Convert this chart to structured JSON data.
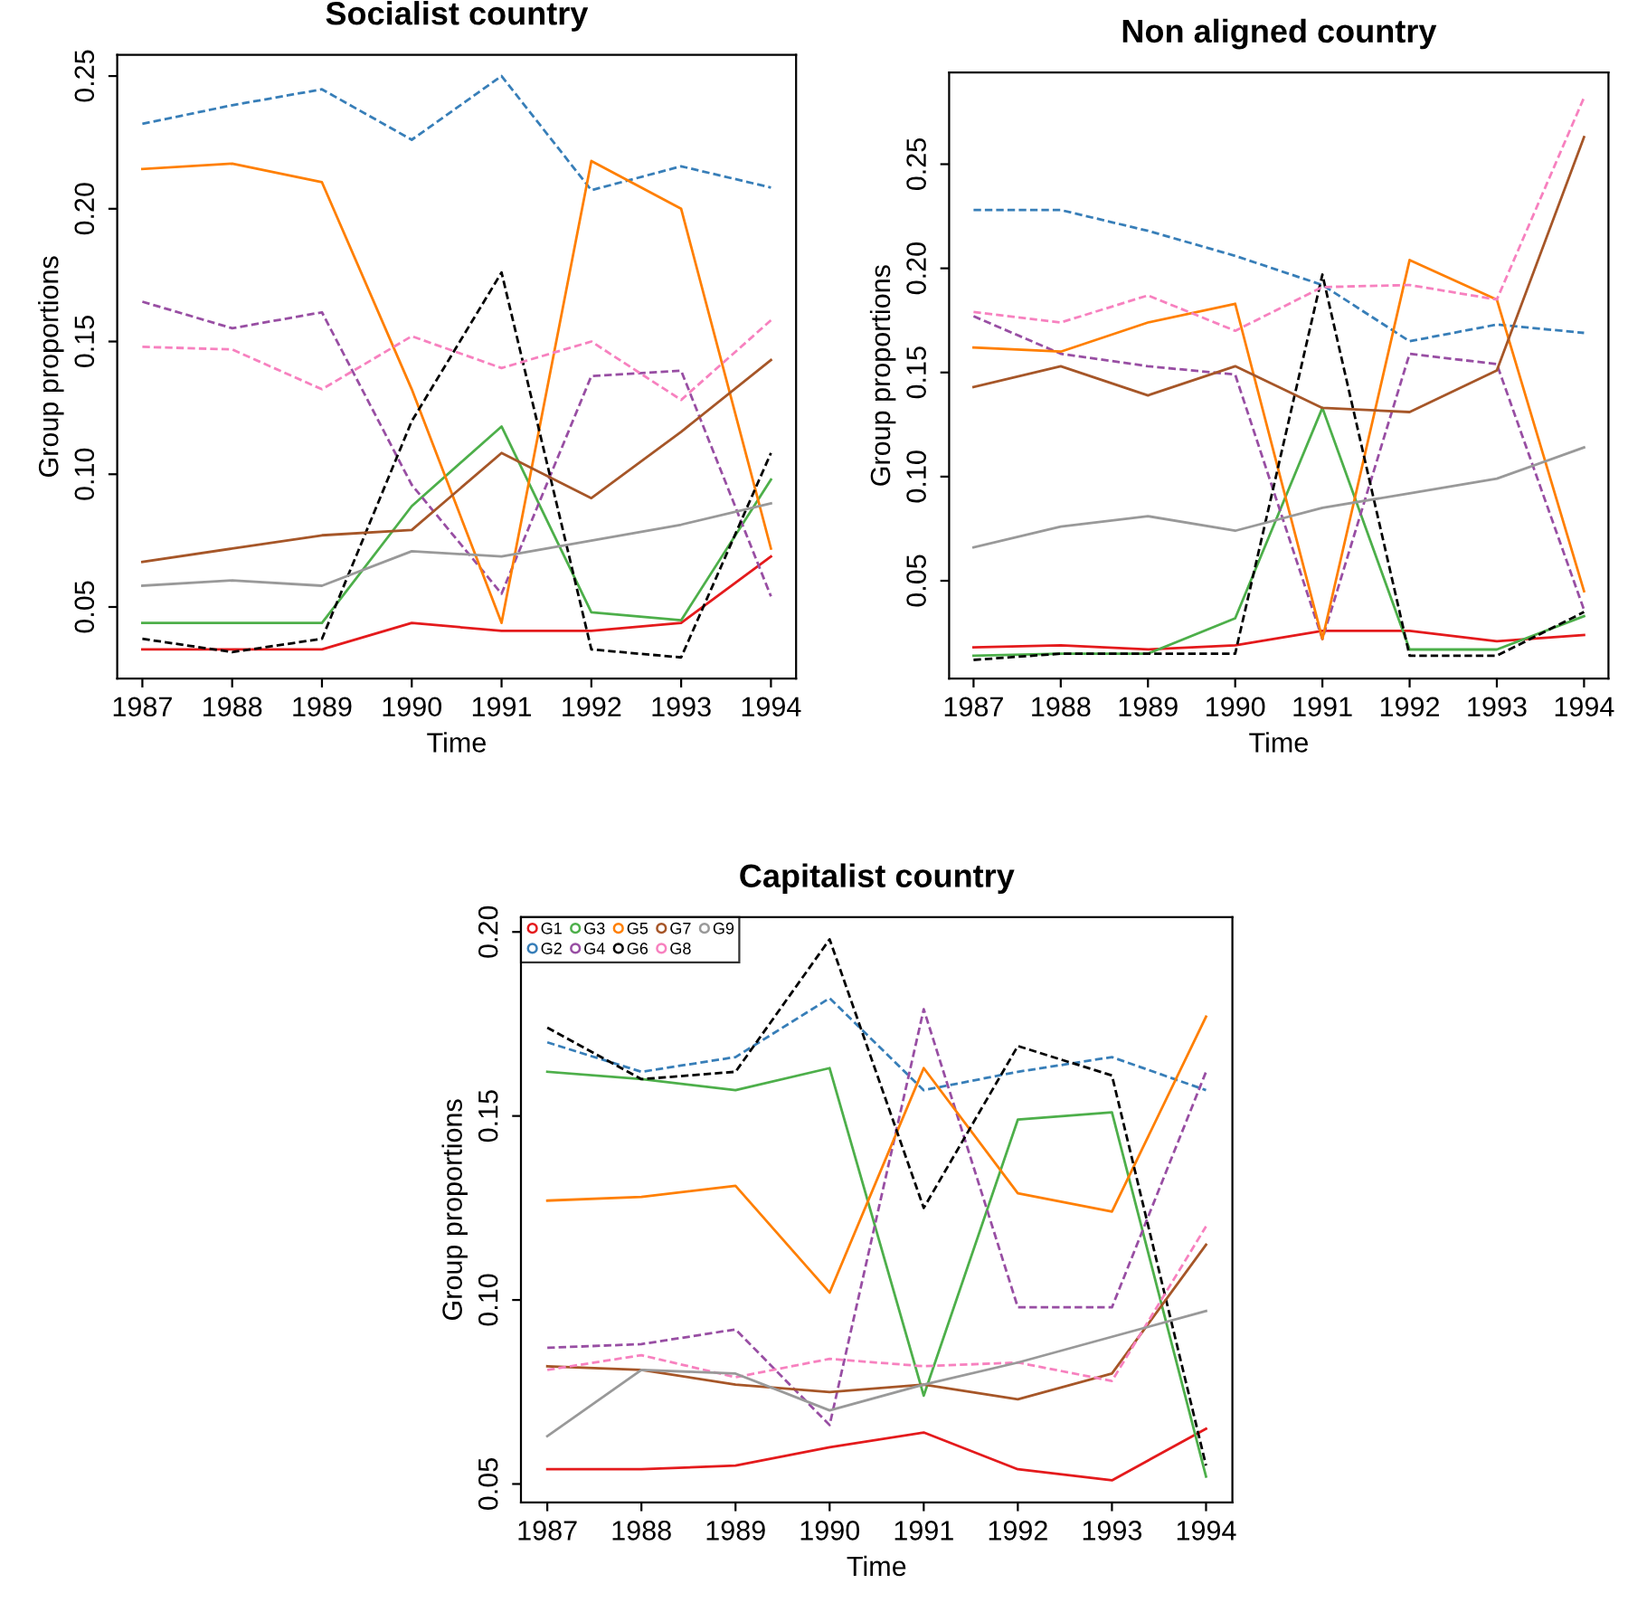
{
  "chart_data": [
    {
      "type": "line",
      "title": "Socialist country",
      "xlabel": "Time",
      "ylabel": "Group proportions",
      "x": [
        1987,
        1988,
        1989,
        1990,
        1991,
        1992,
        1993,
        1994
      ],
      "xlim": [
        1986.72,
        1994.28
      ],
      "xticks": [
        1987,
        1988,
        1989,
        1990,
        1991,
        1992,
        1993,
        1994
      ],
      "ylim": [
        0.023,
        0.258
      ],
      "yticks": [
        {
          "value": 0.05,
          "label": "0.05"
        },
        {
          "value": 0.1,
          "label": "0.10"
        },
        {
          "value": 0.15,
          "label": "0.15"
        },
        {
          "value": 0.2,
          "label": "0.20"
        },
        {
          "value": 0.25,
          "label": "0.25"
        }
      ],
      "grid": false,
      "legend": false,
      "series": [
        {
          "color": "#e41a1c",
          "line_style": "solid",
          "values": [
            0.034,
            0.034,
            0.034,
            0.044,
            0.041,
            0.041,
            0.044,
            0.069
          ]
        },
        {
          "color": "#377eb8",
          "line_style": "dashed",
          "values": [
            0.232,
            0.239,
            0.245,
            0.226,
            0.25,
            0.207,
            0.216,
            0.208
          ]
        },
        {
          "color": "#4daf4a",
          "line_style": "solid",
          "values": [
            0.044,
            0.044,
            0.044,
            0.088,
            0.118,
            0.048,
            0.045,
            0.098
          ]
        },
        {
          "color": "#984ea3",
          "line_style": "dashed",
          "values": [
            0.165,
            0.155,
            0.161,
            0.096,
            0.055,
            0.137,
            0.139,
            0.054
          ]
        },
        {
          "color": "#ff7f00",
          "line_style": "solid",
          "values": [
            0.215,
            0.217,
            0.21,
            0.132,
            0.044,
            0.218,
            0.2,
            0.072
          ]
        },
        {
          "color": "#000000",
          "line_style": "dashed",
          "values": [
            0.038,
            0.033,
            0.038,
            0.12,
            0.176,
            0.034,
            0.031,
            0.108
          ]
        },
        {
          "color": "#a65628",
          "line_style": "solid",
          "values": [
            0.067,
            0.072,
            0.077,
            0.079,
            0.108,
            0.091,
            0.116,
            0.143
          ]
        },
        {
          "color": "#f781bf",
          "line_style": "dashed",
          "values": [
            0.148,
            0.147,
            0.132,
            0.152,
            0.14,
            0.15,
            0.128,
            0.158
          ]
        },
        {
          "color": "#999999",
          "line_style": "solid",
          "values": [
            0.058,
            0.06,
            0.058,
            0.071,
            0.069,
            0.075,
            0.081,
            0.089
          ]
        }
      ]
    },
    {
      "type": "line",
      "title": "Non aligned country",
      "xlabel": "Time",
      "ylabel": "Group proportions",
      "x": [
        1987,
        1988,
        1989,
        1990,
        1991,
        1992,
        1993,
        1994
      ],
      "xlim": [
        1986.72,
        1994.28
      ],
      "xticks": [
        1987,
        1988,
        1989,
        1990,
        1991,
        1992,
        1993,
        1994
      ],
      "ylim": [
        0.003,
        0.294
      ],
      "yticks": [
        {
          "value": 0.05,
          "label": "0.05"
        },
        {
          "value": 0.1,
          "label": "0.10"
        },
        {
          "value": 0.15,
          "label": "0.15"
        },
        {
          "value": 0.2,
          "label": "0.20"
        },
        {
          "value": 0.25,
          "label": "0.25"
        }
      ],
      "grid": false,
      "legend": false,
      "series": [
        {
          "color": "#e41a1c",
          "line_style": "solid",
          "values": [
            0.018,
            0.019,
            0.017,
            0.019,
            0.026,
            0.026,
            0.021,
            0.024
          ]
        },
        {
          "color": "#377eb8",
          "line_style": "dashed",
          "values": [
            0.228,
            0.228,
            0.218,
            0.206,
            0.192,
            0.165,
            0.173,
            0.169
          ]
        },
        {
          "color": "#4daf4a",
          "line_style": "solid",
          "values": [
            0.014,
            0.015,
            0.015,
            0.032,
            0.133,
            0.017,
            0.017,
            0.033
          ]
        },
        {
          "color": "#984ea3",
          "line_style": "dashed",
          "values": [
            0.177,
            0.159,
            0.153,
            0.149,
            0.022,
            0.159,
            0.154,
            0.036
          ]
        },
        {
          "color": "#ff7f00",
          "line_style": "solid",
          "values": [
            0.162,
            0.16,
            0.174,
            0.183,
            0.022,
            0.204,
            0.185,
            0.045
          ]
        },
        {
          "color": "#000000",
          "line_style": "dashed",
          "values": [
            0.012,
            0.015,
            0.015,
            0.015,
            0.197,
            0.014,
            0.014,
            0.035
          ]
        },
        {
          "color": "#a65628",
          "line_style": "solid",
          "values": [
            0.143,
            0.153,
            0.139,
            0.153,
            0.133,
            0.131,
            0.151,
            0.263
          ]
        },
        {
          "color": "#f781bf",
          "line_style": "dashed",
          "values": [
            0.179,
            0.174,
            0.187,
            0.17,
            0.191,
            0.192,
            0.185,
            0.282
          ]
        },
        {
          "color": "#999999",
          "line_style": "solid",
          "values": [
            0.066,
            0.076,
            0.081,
            0.074,
            0.085,
            0.092,
            0.099,
            0.114
          ]
        }
      ]
    },
    {
      "type": "line",
      "title": "Capitalist country",
      "xlabel": "Time",
      "ylabel": "Group proportions",
      "x": [
        1987,
        1988,
        1989,
        1990,
        1991,
        1992,
        1993,
        1994
      ],
      "xlim": [
        1986.72,
        1994.28
      ],
      "xticks": [
        1987,
        1988,
        1989,
        1990,
        1991,
        1992,
        1993,
        1994
      ],
      "ylim": [
        0.045,
        0.204
      ],
      "yticks": [
        {
          "value": 0.05,
          "label": "0.05"
        },
        {
          "value": 0.1,
          "label": "0.10"
        },
        {
          "value": 0.15,
          "label": "0.15"
        },
        {
          "value": 0.2,
          "label": "0.20"
        }
      ],
      "grid": false,
      "legend": "top left",
      "series": [
        {
          "name": "G1",
          "color": "#e41a1c",
          "line_style": "solid",
          "values": [
            0.054,
            0.054,
            0.055,
            0.06,
            0.064,
            0.054,
            0.051,
            0.065
          ]
        },
        {
          "name": "G2",
          "color": "#377eb8",
          "line_style": "dashed",
          "values": [
            0.17,
            0.162,
            0.166,
            0.182,
            0.157,
            0.162,
            0.166,
            0.157
          ]
        },
        {
          "name": "G3",
          "color": "#4daf4a",
          "line_style": "solid",
          "values": [
            0.162,
            0.16,
            0.157,
            0.163,
            0.074,
            0.149,
            0.151,
            0.052
          ]
        },
        {
          "name": "G4",
          "color": "#984ea3",
          "line_style": "dashed",
          "values": [
            0.087,
            0.088,
            0.092,
            0.066,
            0.179,
            0.098,
            0.098,
            0.162
          ]
        },
        {
          "name": "G5",
          "color": "#ff7f00",
          "line_style": "solid",
          "values": [
            0.127,
            0.128,
            0.131,
            0.102,
            0.163,
            0.129,
            0.124,
            0.177
          ]
        },
        {
          "name": "G6",
          "color": "#000000",
          "line_style": "dashed",
          "values": [
            0.174,
            0.16,
            0.162,
            0.198,
            0.125,
            0.169,
            0.161,
            0.055
          ]
        },
        {
          "name": "G7",
          "color": "#a65628",
          "line_style": "solid",
          "values": [
            0.082,
            0.081,
            0.077,
            0.075,
            0.077,
            0.073,
            0.08,
            0.115
          ]
        },
        {
          "name": "G8",
          "color": "#f781bf",
          "line_style": "dashed",
          "values": [
            0.081,
            0.085,
            0.079,
            0.084,
            0.082,
            0.083,
            0.078,
            0.12
          ]
        },
        {
          "name": "G9",
          "color": "#999999",
          "line_style": "solid",
          "values": [
            0.063,
            0.081,
            0.08,
            0.07,
            0.077,
            0.083,
            0.09,
            0.097
          ]
        }
      ]
    }
  ]
}
